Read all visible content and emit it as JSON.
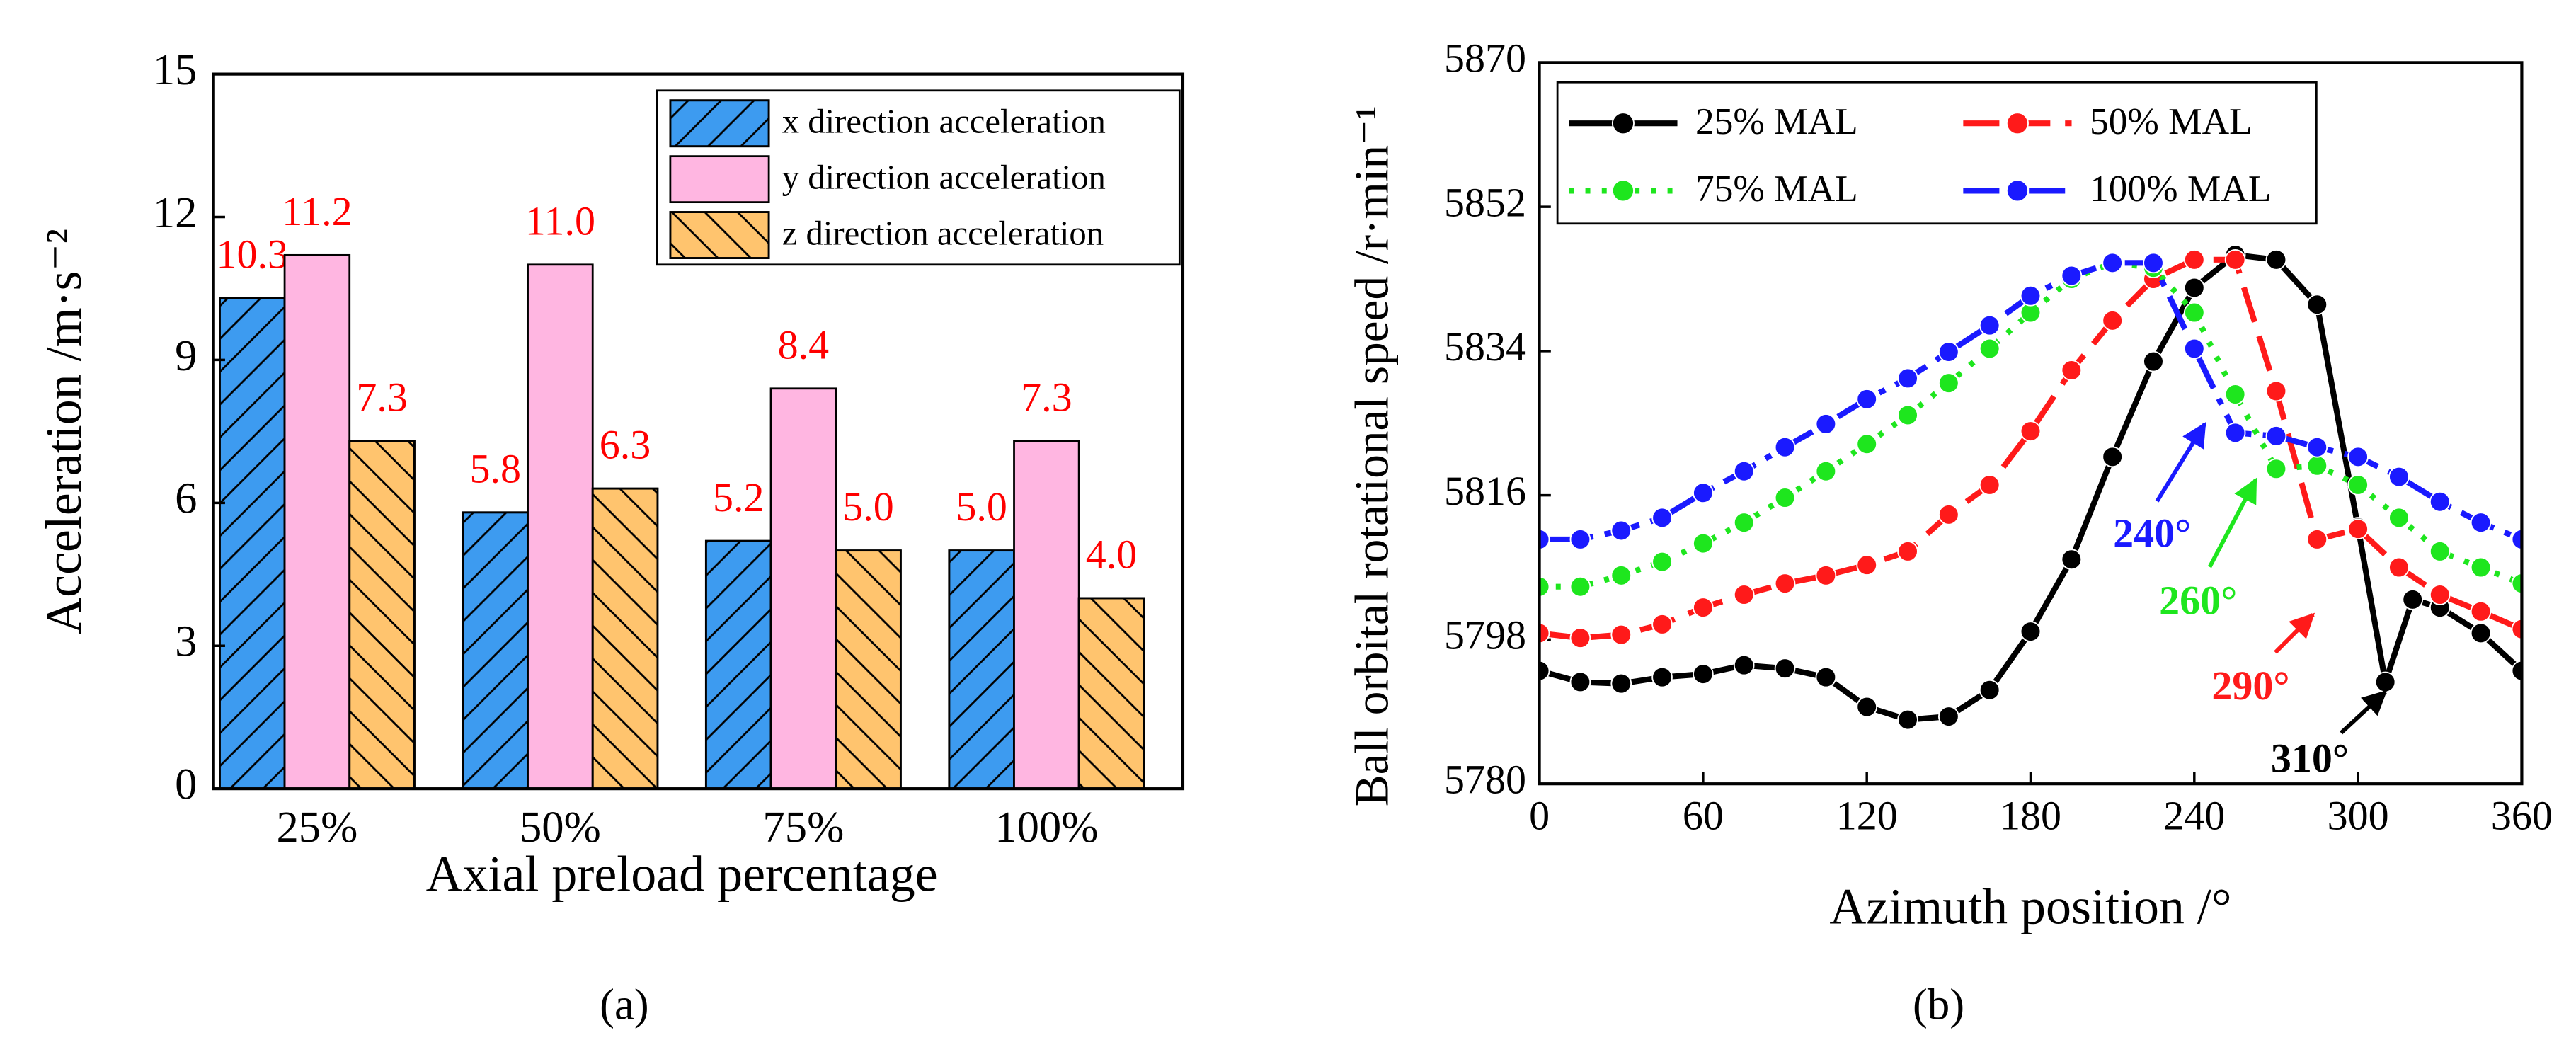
{
  "chart_data": [
    {
      "type": "bar",
      "subtitle": "(a)",
      "xlabel": "Axial preload percentage",
      "ylabel": "Acceleration /m·s⁻²",
      "categories": [
        "25%",
        "50%",
        "75%",
        "100%"
      ],
      "series": [
        {
          "name": "x direction acceleration",
          "color": "#3d9bf0",
          "hatch": "forward",
          "values": [
            10.3,
            5.8,
            5.2,
            5.0
          ],
          "value_labels": [
            "10.3",
            "5.8",
            "5.2",
            "5.0"
          ]
        },
        {
          "name": "y direction acceleration",
          "color": "#ffb6e1",
          "hatch": "none",
          "values": [
            11.2,
            11.0,
            8.4,
            7.3
          ],
          "value_labels": [
            "11.2",
            "11.0",
            "8.4",
            "7.3"
          ]
        },
        {
          "name": "z direction acceleration",
          "color": "#ffc46e",
          "hatch": "back",
          "values": [
            7.3,
            6.3,
            5.0,
            4.0
          ],
          "value_labels": [
            "7.3",
            "6.3",
            "5.0",
            "4.0"
          ]
        }
      ],
      "value_label_color": "#ff0000",
      "ylim": [
        0,
        15
      ],
      "yticks": [
        0,
        3,
        6,
        9,
        12,
        15
      ],
      "legend": "upper right"
    },
    {
      "type": "line",
      "subtitle": "(b)",
      "xlabel": "Azimuth position /°",
      "ylabel": "Ball orbital rotational speed /r·min⁻¹",
      "series": [
        {
          "name": "25% MAL",
          "color": "#000000",
          "style": "solid",
          "x": [
            0,
            15,
            30,
            45,
            60,
            75,
            90,
            105,
            120,
            135,
            150,
            165,
            180,
            195,
            210,
            225,
            240,
            255,
            270,
            285,
            300,
            310,
            320,
            330,
            345,
            360
          ],
          "values": [
            5794.1,
            5792.7,
            5792.5,
            5793.3,
            5793.7,
            5794.8,
            5794.4,
            5793.3,
            5789.6,
            5788.0,
            5788.4,
            5791.7,
            5799.0,
            5808.0,
            5820.8,
            5832.7,
            5841.9,
            5846.0,
            5845.4,
            5839.8,
            5812.0,
            5792.7,
            5803.0,
            5802.0,
            5798.8,
            5794.1
          ]
        },
        {
          "name": "50% MAL",
          "color": "#ff1a1a",
          "style": "dashed",
          "x": [
            0,
            15,
            30,
            45,
            60,
            75,
            90,
            105,
            120,
            135,
            150,
            165,
            180,
            195,
            210,
            225,
            240,
            255,
            270,
            285,
            300,
            315,
            330,
            345,
            360
          ],
          "values": [
            5798.8,
            5798.2,
            5798.6,
            5799.9,
            5802.0,
            5803.6,
            5805.0,
            5806.0,
            5807.3,
            5809.0,
            5813.6,
            5817.3,
            5824.0,
            5831.6,
            5837.8,
            5843.0,
            5845.4,
            5845.4,
            5829.0,
            5810.5,
            5811.8,
            5807.0,
            5803.6,
            5801.5,
            5799.3
          ]
        },
        {
          "name": "75% MAL",
          "color": "#1ee61e",
          "style": "dotted",
          "x": [
            0,
            15,
            30,
            45,
            60,
            75,
            90,
            105,
            120,
            135,
            150,
            165,
            180,
            195,
            210,
            225,
            240,
            255,
            270,
            285,
            300,
            315,
            330,
            345,
            360
          ],
          "values": [
            5804.6,
            5804.6,
            5806.0,
            5807.7,
            5810.0,
            5812.6,
            5815.7,
            5819.0,
            5822.4,
            5826.0,
            5830.0,
            5834.3,
            5838.8,
            5843.0,
            5845.0,
            5844.4,
            5838.8,
            5828.6,
            5819.3,
            5819.7,
            5817.3,
            5813.2,
            5809.0,
            5807.0,
            5805.0
          ]
        },
        {
          "name": "100% MAL",
          "color": "#1a1aff",
          "style": "dashdot",
          "x": [
            0,
            15,
            30,
            45,
            60,
            75,
            90,
            105,
            120,
            135,
            150,
            165,
            180,
            195,
            210,
            225,
            240,
            255,
            270,
            285,
            300,
            315,
            330,
            345,
            360
          ],
          "values": [
            5810.5,
            5810.5,
            5811.6,
            5813.2,
            5816.3,
            5819.0,
            5822.0,
            5824.9,
            5828.0,
            5830.6,
            5833.9,
            5837.2,
            5840.9,
            5843.4,
            5845.0,
            5845.0,
            5834.3,
            5823.8,
            5823.4,
            5822.0,
            5820.8,
            5818.3,
            5815.2,
            5812.6,
            5810.5
          ]
        }
      ],
      "annotations": [
        {
          "text": "240°",
          "color": "#1a1aff"
        },
        {
          "text": "260°",
          "color": "#1ee61e"
        },
        {
          "text": "290°",
          "color": "#ff1a1a"
        },
        {
          "text": "310°",
          "color": "#000000"
        }
      ],
      "xlim": [
        0,
        360
      ],
      "xticks": [
        0,
        60,
        120,
        180,
        240,
        300,
        360
      ],
      "ylim": [
        5780,
        5870
      ],
      "yticks": [
        5780,
        5798,
        5816,
        5834,
        5852,
        5870
      ],
      "legend": "upper left"
    }
  ]
}
